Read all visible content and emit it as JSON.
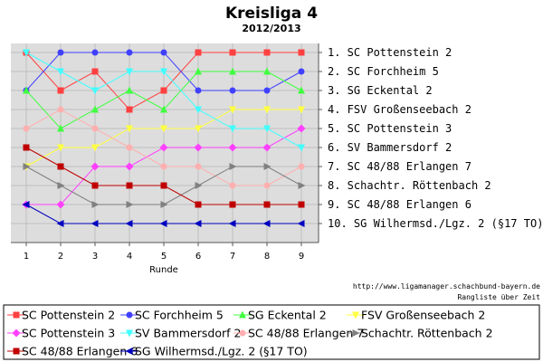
{
  "chart_data": {
    "type": "line",
    "title": "Kreisliga 4",
    "subtitle": "2012/2013",
    "xlabel": "Runde",
    "x": [
      1,
      2,
      3,
      4,
      5,
      6,
      7,
      8,
      9
    ],
    "x_tick_labels": [
      "1",
      "2",
      "3",
      "4",
      "5",
      "6",
      "7",
      "8",
      "9"
    ],
    "ylim": [
      1,
      10
    ],
    "y_inverted": true,
    "grid": true,
    "legend_position": "bottom",
    "standings_labels": [
      "1.  SC Pottenstein 2",
      "2.  SC Forchheim 5",
      "3.  SG Eckental 2",
      "4.  FSV Großenseebach 2",
      "5.  SC Pottenstein 3",
      "6.  SV Bammersdorf 2",
      "7.  SC 48/88 Erlangen 7",
      "8.  Schachtr. Röttenbach 2",
      "9.  SC 48/88 Erlangen 6",
      "10. SG Wilhermsd./Lgz. 2 (§17 TO)"
    ],
    "series": [
      {
        "name": "SC Pottenstein 2",
        "color": "#ff4040",
        "marker": "square",
        "values": [
          1,
          3,
          2,
          4,
          3,
          1,
          1,
          1,
          1
        ]
      },
      {
        "name": "SC Forchheim 5",
        "color": "#4040ff",
        "marker": "circle",
        "values": [
          3,
          1,
          1,
          1,
          1,
          3,
          3,
          3,
          2
        ]
      },
      {
        "name": "SG Eckental 2",
        "color": "#40ff40",
        "marker": "triangle-up",
        "values": [
          3,
          5,
          4,
          3,
          4,
          2,
          2,
          2,
          3
        ]
      },
      {
        "name": "FSV Großenseebach 2",
        "color": "#ffff40",
        "marker": "triangle-down",
        "values": [
          7,
          6,
          6,
          5,
          5,
          5,
          4,
          4,
          4
        ]
      },
      {
        "name": "SC Pottenstein 3",
        "color": "#ff40ff",
        "marker": "diamond",
        "values": [
          9,
          9,
          7,
          7,
          6,
          6,
          6,
          6,
          5
        ]
      },
      {
        "name": "SV Bammersdorf 2",
        "color": "#40ffff",
        "marker": "triangle-down",
        "values": [
          1,
          2,
          3,
          2,
          2,
          4,
          5,
          5,
          6
        ]
      },
      {
        "name": "SC 48/88 Erlangen 7",
        "color": "#ffafaf",
        "marker": "circle",
        "values": [
          5,
          4,
          5,
          6,
          7,
          7,
          8,
          8,
          7
        ]
      },
      {
        "name": "Schachtr. Röttenbach 2",
        "color": "#808080",
        "marker": "triangle-right",
        "values": [
          7,
          8,
          9,
          9,
          9,
          8,
          7,
          7,
          8
        ]
      },
      {
        "name": "SC 48/88 Erlangen 6",
        "color": "#c00000",
        "marker": "square",
        "values": [
          6,
          7,
          8,
          8,
          8,
          9,
          9,
          9,
          9
        ]
      },
      {
        "name": "SG Wilhermsd./Lgz. 2 (§17 TO)",
        "color": "#0000c0",
        "marker": "triangle-left",
        "values": [
          9,
          10,
          10,
          10,
          10,
          10,
          10,
          10,
          10
        ]
      }
    ],
    "source_url": "http://www.ligamanager.schachbund-bayern.de",
    "footer_caption": "Rangliste über Zeit"
  }
}
